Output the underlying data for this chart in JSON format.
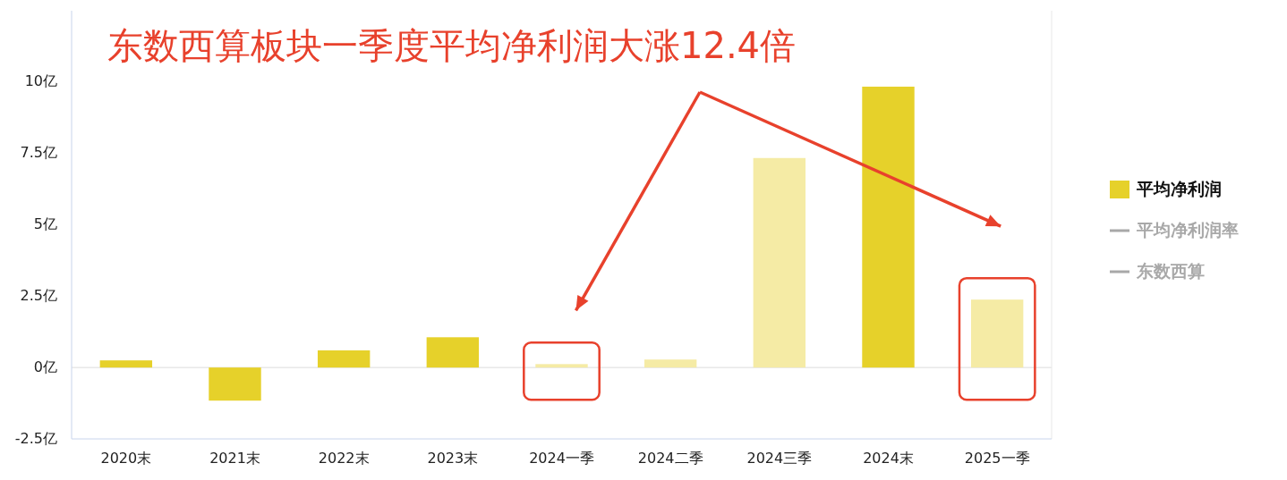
{
  "chart_data": {
    "type": "bar",
    "title": "东数西算板块一季度平均净利润大涨12.4倍",
    "categories": [
      "2020末",
      "2021末",
      "2022末",
      "2023末",
      "2024一季",
      "2024二季",
      "2024三季",
      "2024末",
      "2025一季"
    ],
    "series": [
      {
        "name": "平均净利润",
        "color": "#e6d12a",
        "values": [
          0.25,
          -1.16,
          0.6,
          1.06,
          0.12,
          0.28,
          7.34,
          9.84,
          2.38
        ],
        "colors": [
          "#e6d12a",
          "#e6d12a",
          "#e6d12a",
          "#e6d12a",
          "#f5eba5",
          "#f5eba5",
          "#f5eba5",
          "#e6d12a",
          "#f5eba5"
        ]
      },
      {
        "name": "平均净利润率",
        "type": "line",
        "color": "#a8a8a8",
        "values": [
          null,
          null,
          null,
          null,
          null,
          null,
          null,
          null,
          null
        ]
      },
      {
        "name": "东数西算",
        "type": "line",
        "color": "#a8a8a8",
        "values": [
          null,
          null,
          null,
          null,
          null,
          null,
          null,
          null,
          null
        ]
      }
    ],
    "ylim": [
      -2.5,
      12.5
    ],
    "yticks": [
      {
        "value": -2.5,
        "label": "-2.5亿"
      },
      {
        "value": 0,
        "label": "0亿"
      },
      {
        "value": 2.5,
        "label": "2.5亿"
      },
      {
        "value": 5,
        "label": "5亿"
      },
      {
        "value": 7.5,
        "label": "7.5亿"
      },
      {
        "value": 10,
        "label": "10亿"
      }
    ],
    "ref_lines": [
      {
        "axis": "y",
        "value": 0,
        "color": "#dddddd"
      }
    ],
    "legend": "right"
  }
}
